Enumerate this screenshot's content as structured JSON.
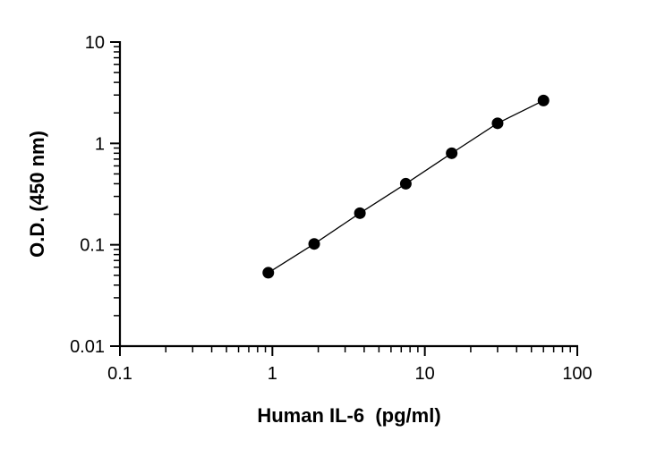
{
  "chart_data": {
    "type": "scatter",
    "title": "",
    "xlabel": "Human IL-6  (pg/ml)",
    "ylabel": "O.D. (450 nm)",
    "xscale": "log",
    "yscale": "log",
    "xlim": [
      0.1,
      100
    ],
    "ylim": [
      0.01,
      10
    ],
    "xticks": [
      0.1,
      1,
      10,
      100
    ],
    "xtick_labels": [
      "0.1",
      "1",
      "10",
      "100"
    ],
    "yticks": [
      0.01,
      0.1,
      1,
      10
    ],
    "ytick_labels": [
      "0.01",
      "0.1",
      "1",
      "10"
    ],
    "grid": false,
    "legend": "none",
    "fit_line": true,
    "series": [
      {
        "x": [
          0.94,
          1.88,
          3.75,
          7.5,
          15,
          30,
          60
        ],
        "y": [
          0.053,
          0.102,
          0.205,
          0.4,
          0.8,
          1.58,
          2.65
        ]
      }
    ]
  }
}
